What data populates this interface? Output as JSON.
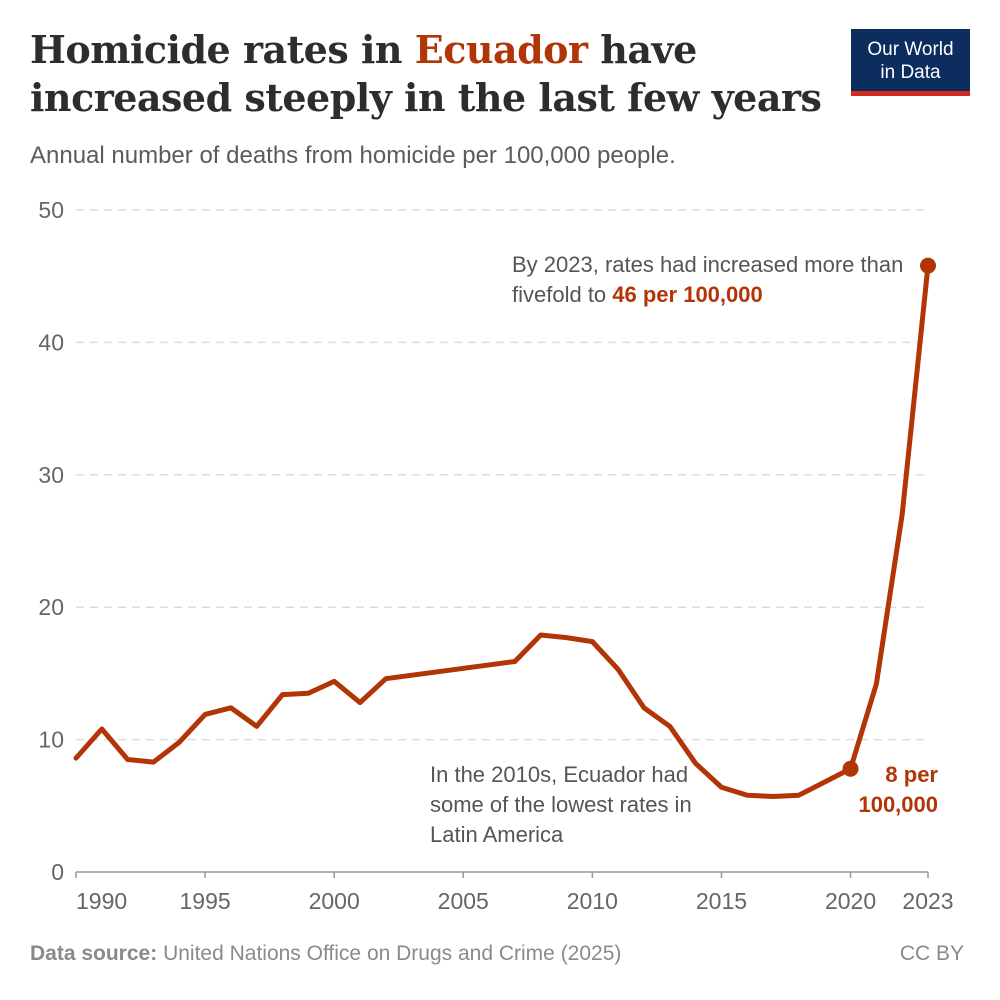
{
  "header": {
    "title_before": "Homicide rates in ",
    "title_highlight": "Ecuador",
    "title_after": " have increased steeply in the last few years",
    "subtitle": "Annual number of deaths from homicide per 100,000 people."
  },
  "logo": {
    "line1": "Our World",
    "line2": "in Data"
  },
  "annotations": {
    "top_text": "By 2023, rates had increased more than fivefold to ",
    "top_bold": "46 per 100,000",
    "low_text": "In the 2010s, Ecuador had some of the lowest rates in Latin America",
    "point_label_line1": "8 per",
    "point_label_line2": "100,000"
  },
  "footer": {
    "source_label": "Data source:",
    "source_text": "United Nations Office on Drugs and Crime (2025)",
    "license": "CC BY"
  },
  "colors": {
    "line": "#b13507",
    "accent": "#b13507",
    "grid": "#dddddd",
    "logo_bg": "#0c2d5e",
    "logo_bar": "#d42b21"
  },
  "chart_data": {
    "type": "line",
    "title": "Homicide rates in Ecuador have increased steeply in the last few years",
    "subtitle": "Annual number of deaths from homicide per 100,000 people.",
    "xlabel": "",
    "ylabel": "",
    "ylim": [
      0,
      50
    ],
    "xlim": [
      1990,
      2023
    ],
    "y_ticks": [
      0,
      10,
      20,
      30,
      40,
      50
    ],
    "x_ticks": [
      1990,
      1995,
      2000,
      2005,
      2010,
      2015,
      2020,
      2023
    ],
    "grid": "horizontal dashed",
    "legend": "none",
    "series": [
      {
        "x": [
          1990,
          1991,
          1992,
          1993,
          1994,
          1995,
          1996,
          1997,
          1998,
          1999,
          2000,
          2001,
          2002,
          2007,
          2008,
          2009,
          2010,
          2011,
          2012,
          2013,
          2014,
          2015,
          2016,
          2017,
          2018,
          2019,
          2020,
          2021,
          2022,
          2023
        ],
        "values": [
          8.6,
          10.8,
          8.5,
          8.3,
          9.8,
          11.9,
          12.4,
          11.0,
          13.4,
          13.5,
          14.4,
          12.8,
          14.6,
          15.9,
          17.9,
          17.7,
          17.4,
          15.3,
          12.4,
          11.0,
          8.2,
          6.4,
          5.8,
          5.7,
          5.8,
          6.8,
          7.8,
          14.2,
          27.0,
          45.8
        ]
      }
    ],
    "highlighted_points": [
      {
        "x": 2020,
        "y": 7.8
      },
      {
        "x": 2023,
        "y": 45.8
      }
    ]
  }
}
